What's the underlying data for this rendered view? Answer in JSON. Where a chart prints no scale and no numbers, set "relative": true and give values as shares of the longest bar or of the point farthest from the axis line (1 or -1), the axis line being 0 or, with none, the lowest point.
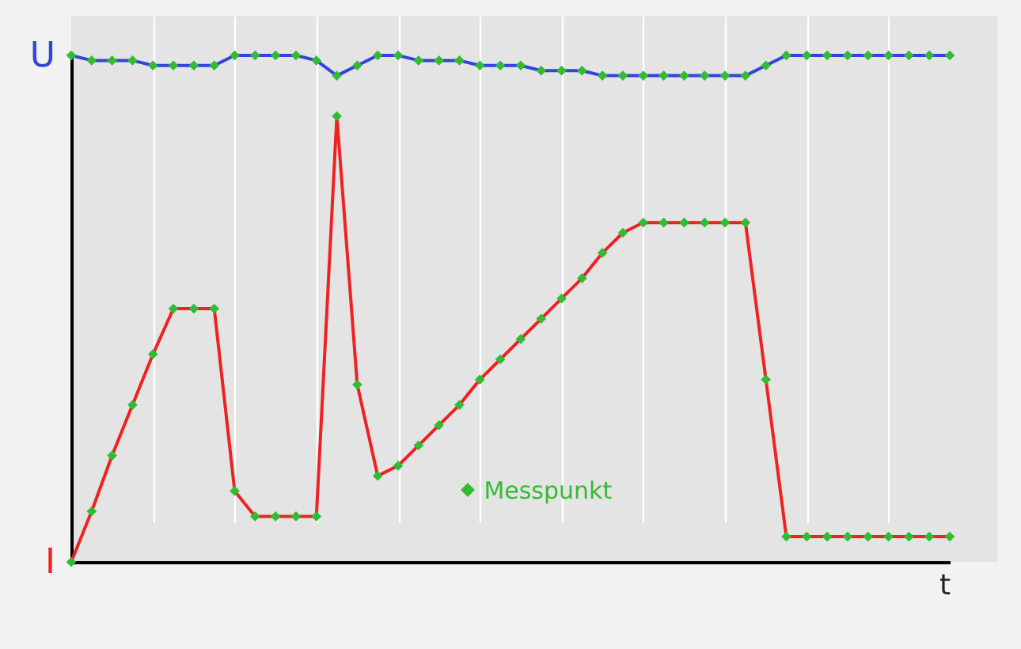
{
  "chart_data": {
    "type": "line",
    "relative": true,
    "xlabel": "t",
    "grid": "x",
    "marker": "diamond",
    "annotations": [
      "Messpunkt"
    ],
    "categories": [
      null,
      null,
      null,
      null,
      null,
      null,
      null,
      null,
      null,
      null,
      null,
      null,
      null,
      null,
      null,
      null,
      null,
      null,
      null,
      null,
      null,
      null,
      null,
      null,
      null,
      null,
      null,
      null,
      null,
      null,
      null,
      null,
      null,
      null,
      null,
      null,
      null,
      null,
      null,
      null,
      null,
      null,
      null,
      null
    ],
    "series": [
      {
        "name": "U",
        "color": "#3344dd",
        "values": [
          1.0,
          0.99,
          0.99,
          0.99,
          0.98,
          0.98,
          0.98,
          0.98,
          1.0,
          1.0,
          1.0,
          1.0,
          0.99,
          0.96,
          0.98,
          1.0,
          1.0,
          0.99,
          0.99,
          0.99,
          0.98,
          0.98,
          0.98,
          0.97,
          0.97,
          0.97,
          0.96,
          0.96,
          0.96,
          0.96,
          0.96,
          0.96,
          0.96,
          0.96,
          0.98,
          1.0,
          1.0,
          1.0,
          1.0,
          1.0,
          1.0,
          1.0,
          1.0,
          1.0
        ]
      },
      {
        "name": "I",
        "color": "#ee2222",
        "values": [
          0,
          0.1,
          0.21,
          0.31,
          0.41,
          0.5,
          0.5,
          0.5,
          0.14,
          0.09,
          0.09,
          0.09,
          0.09,
          0.88,
          0.35,
          0.17,
          0.19,
          0.23,
          0.27,
          0.31,
          0.36,
          0.4,
          0.44,
          0.48,
          0.52,
          0.56,
          0.61,
          0.65,
          0.67,
          0.67,
          0.67,
          0.67,
          0.67,
          0.67,
          0.36,
          0.05,
          0.05,
          0.05,
          0.05,
          0.05,
          0.05,
          0.05,
          0.05,
          0.05
        ]
      }
    ]
  }
}
